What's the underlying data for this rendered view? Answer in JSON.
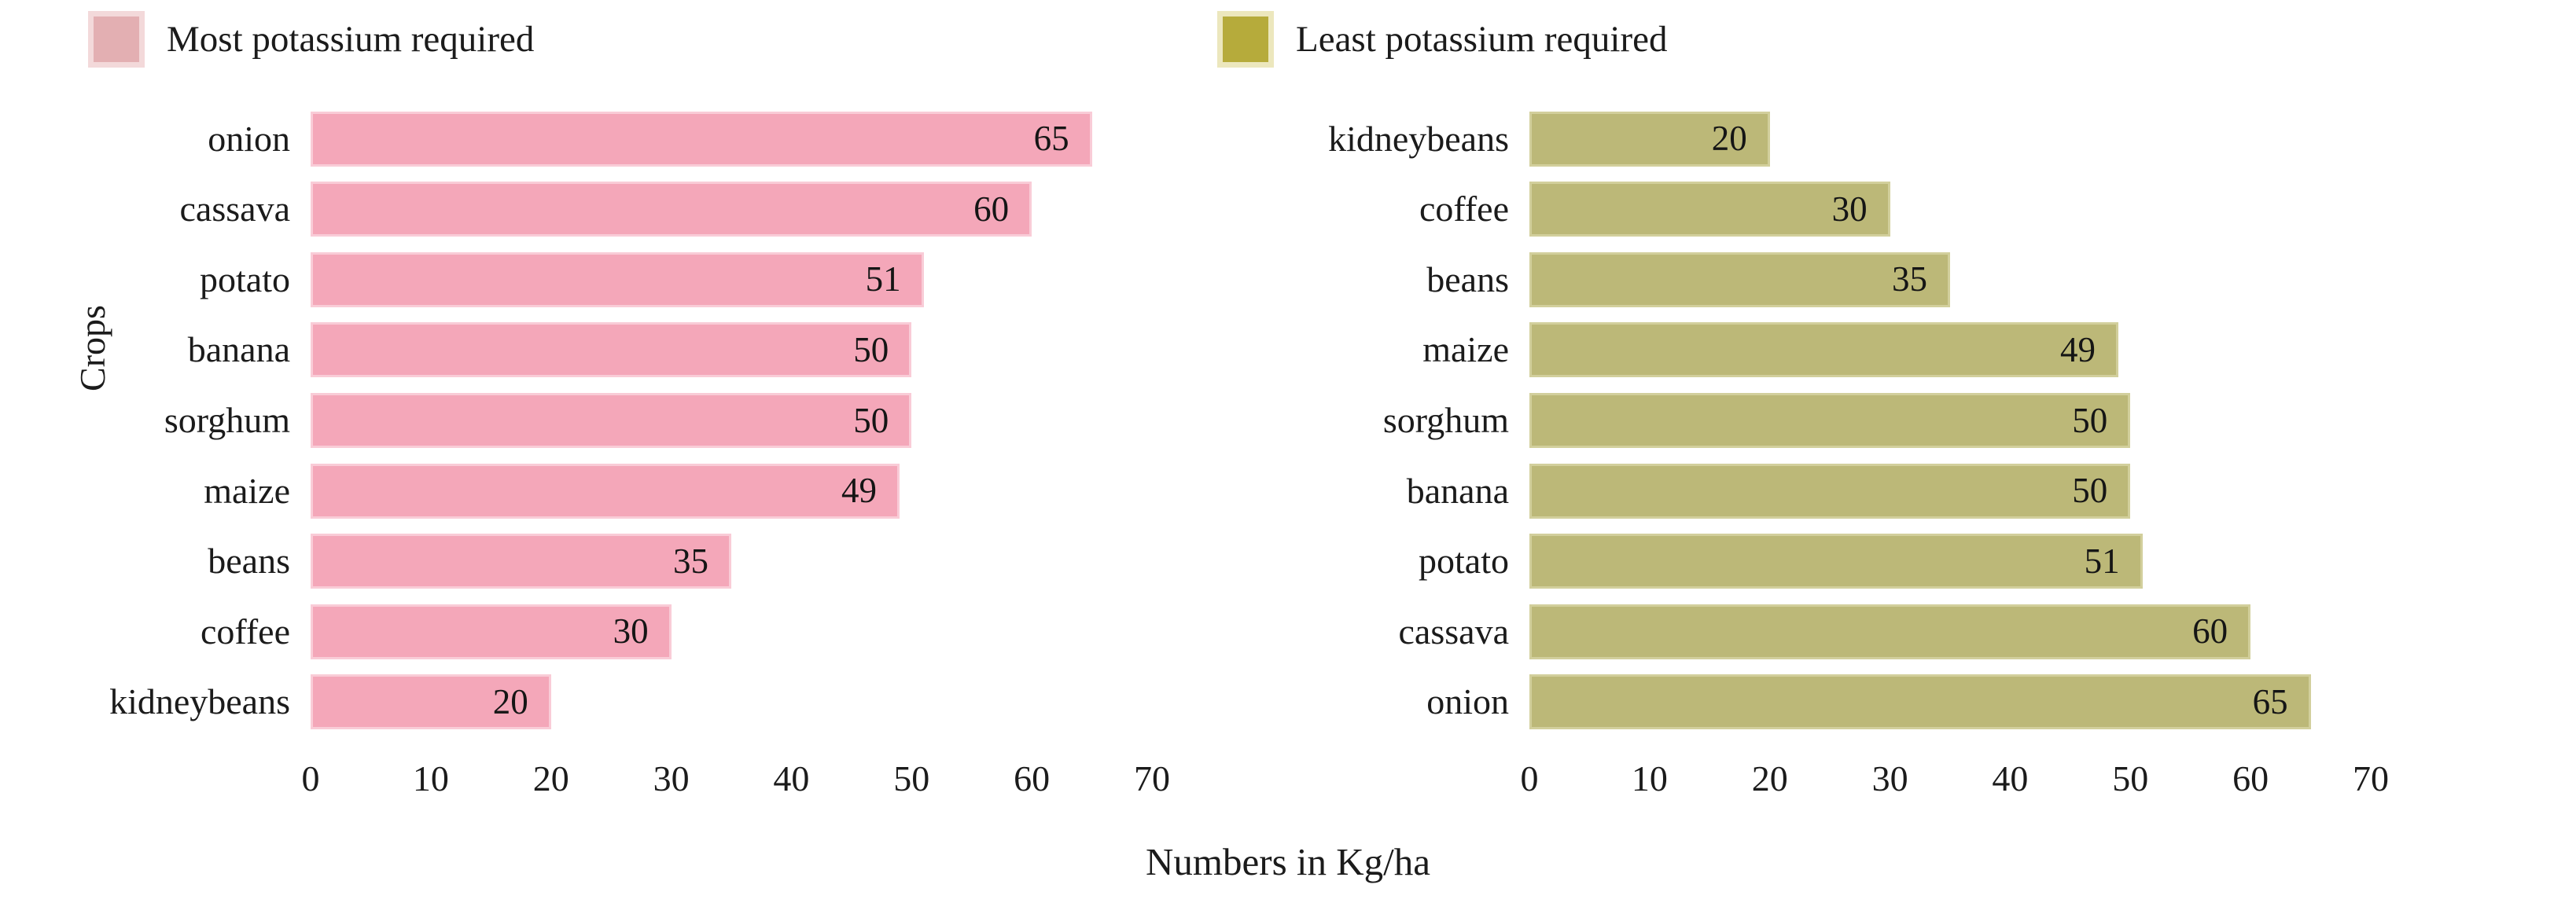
{
  "figure": {
    "xlabel": "Numbers in Kg/ha",
    "ylabel": "Crops",
    "background": "#ffffff"
  },
  "chart_data": [
    {
      "type": "bar",
      "orientation": "horizontal",
      "title": "Most potassium required",
      "categories": [
        "onion",
        "cassava",
        "potato",
        "banana",
        "sorghum",
        "maize",
        "beans",
        "coffee",
        "kidneybeans"
      ],
      "values": [
        65,
        60,
        51,
        50,
        50,
        49,
        35,
        30,
        20
      ],
      "xlim": [
        0,
        70
      ],
      "xticks": [
        0,
        10,
        20,
        30,
        40,
        50,
        60,
        70
      ],
      "bar_color": "#f4a7b9",
      "bar_edge_color": "#f9ccd7",
      "legend_color": "#e3afb2",
      "legend_edge_color": "#f3d9da",
      "value_labels_inside_bar": true,
      "grid": false,
      "legend_position": "top-left"
    },
    {
      "type": "bar",
      "orientation": "horizontal",
      "title": "Least potassium required",
      "categories": [
        "kidneybeans",
        "coffee",
        "beans",
        "maize",
        "sorghum",
        "banana",
        "potato",
        "cassava",
        "onion"
      ],
      "values": [
        20,
        30,
        35,
        49,
        50,
        50,
        51,
        60,
        65
      ],
      "xlim": [
        0,
        70
      ],
      "xticks": [
        0,
        10,
        20,
        30,
        40,
        50,
        60,
        70
      ],
      "bar_color": "#bcb878",
      "bar_edge_color": "#d2cf9c",
      "legend_color": "#b6ab3b",
      "legend_edge_color": "#ece7bd",
      "value_labels_inside_bar": true,
      "grid": false,
      "legend_position": "top-left"
    }
  ]
}
